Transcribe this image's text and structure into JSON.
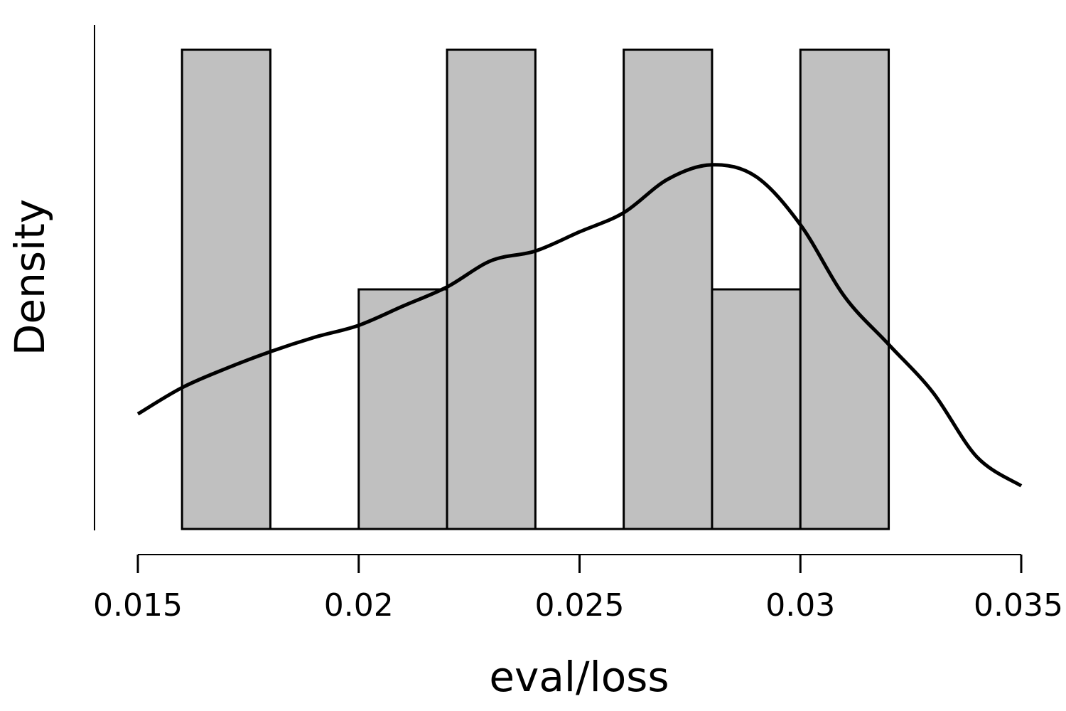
{
  "chart_data": {
    "type": "bar",
    "subtype": "histogram-with-density",
    "xlabel": "eval/loss",
    "ylabel": "Density",
    "xlim": [
      0.015,
      0.035
    ],
    "x_ticks": [
      0.015,
      0.02,
      0.025,
      0.03,
      0.035
    ],
    "x_tick_labels": [
      "0.015",
      "0.02",
      "0.025",
      "0.03",
      "0.035"
    ],
    "y_ticks_shown": false,
    "grid": false,
    "legend": "none",
    "bin_width": 0.002,
    "bins": [
      {
        "start": 0.016,
        "end": 0.018,
        "count": 2
      },
      {
        "start": 0.018,
        "end": 0.02,
        "count": 0
      },
      {
        "start": 0.02,
        "end": 0.022,
        "count": 1
      },
      {
        "start": 0.022,
        "end": 0.024,
        "count": 2
      },
      {
        "start": 0.024,
        "end": 0.026,
        "count": 0
      },
      {
        "start": 0.026,
        "end": 0.028,
        "count": 2
      },
      {
        "start": 0.028,
        "end": 0.03,
        "count": 1
      },
      {
        "start": 0.03,
        "end": 0.032,
        "count": 2
      }
    ],
    "bar_ylim": [
      0,
      2
    ],
    "density_curve": {
      "x": [
        0.015,
        0.016,
        0.017,
        0.018,
        0.019,
        0.02,
        0.021,
        0.022,
        0.023,
        0.024,
        0.025,
        0.026,
        0.027,
        0.028,
        0.029,
        0.03,
        0.031,
        0.032,
        0.033,
        0.034,
        0.035
      ],
      "y": [
        0.48,
        0.59,
        0.67,
        0.74,
        0.8,
        0.85,
        0.93,
        1.01,
        1.12,
        1.16,
        1.24,
        1.32,
        1.46,
        1.52,
        1.47,
        1.27,
        0.97,
        0.77,
        0.57,
        0.3,
        0.18
      ]
    },
    "colors": {
      "bar_fill": "#c0c0c0",
      "bar_stroke": "#000000",
      "curve": "#000000",
      "axis": "#000000"
    }
  }
}
